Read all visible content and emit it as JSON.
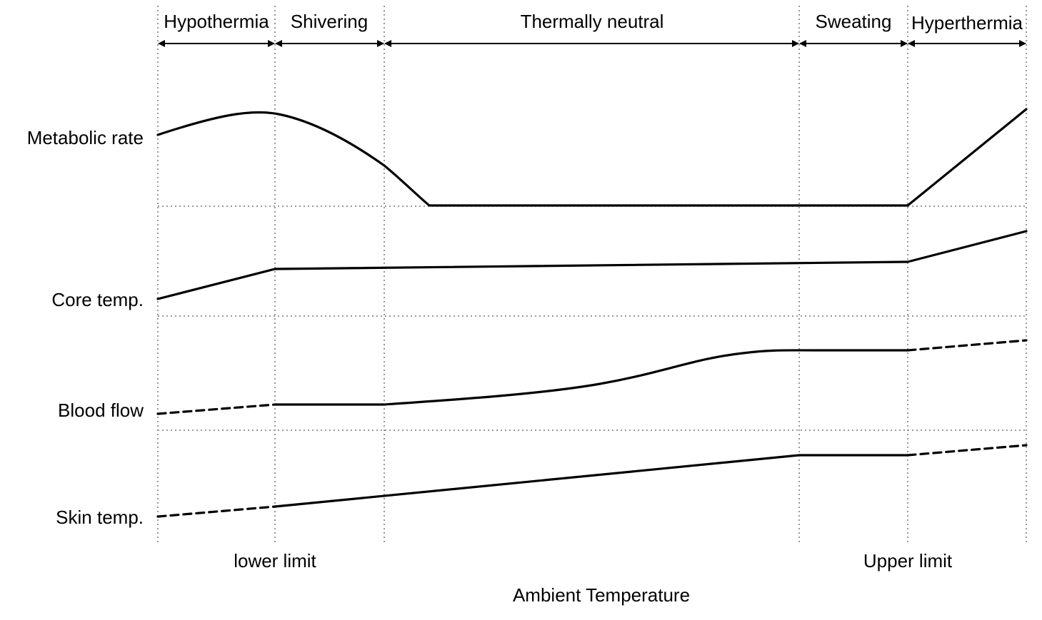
{
  "zones": [
    {
      "id": "hypothermia",
      "label": "Hypothermia"
    },
    {
      "id": "shivering",
      "label": "Shivering"
    },
    {
      "id": "thermally-neutral",
      "label": "Thermally neutral"
    },
    {
      "id": "sweating",
      "label": "Sweating"
    },
    {
      "id": "hyperthermia",
      "label": "Hyperthermia"
    }
  ],
  "rows": [
    {
      "id": "metabolic-rate",
      "label": "Metabolic rate"
    },
    {
      "id": "core-temp",
      "label": "Core temp."
    },
    {
      "id": "blood-flow",
      "label": "Blood flow"
    },
    {
      "id": "skin-temp",
      "label": "Skin temp."
    }
  ],
  "limits": {
    "lower": "lower limit",
    "upper": "Upper limit"
  },
  "xlabel": "Ambient Temperature",
  "colors": {
    "curve": "#000000",
    "guide": "#999999"
  }
}
